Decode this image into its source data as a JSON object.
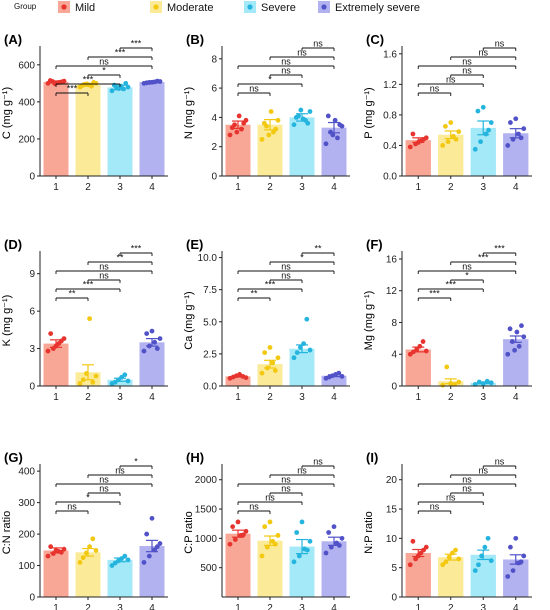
{
  "legend": {
    "title": "Group",
    "items": [
      {
        "label": "Mild",
        "color": "#F8A796",
        "dot": "#E8342E"
      },
      {
        "label": "Moderate",
        "color": "#FBEB98",
        "dot": "#F2C811"
      },
      {
        "label": "Severe",
        "color": "#A4E9F8",
        "dot": "#24B4DE"
      },
      {
        "label": "Extremely severe",
        "color": "#B2B2F0",
        "dot": "#5152C8"
      }
    ]
  },
  "chart_data": [
    {
      "panel": "(A)",
      "type": "bar",
      "categories": [
        "1",
        "2",
        "3",
        "4"
      ],
      "values": [
        508,
        492,
        478,
        507
      ],
      "errors": [
        5,
        8,
        12,
        4
      ],
      "ylabel": "C (mg g⁻¹)",
      "ylim": [
        0,
        680
      ],
      "yticks": [
        "0",
        "200",
        "400",
        "600"
      ],
      "ytick_values": [
        0,
        200,
        400,
        600
      ],
      "points": [
        [
          500,
          505,
          510,
          512,
          503,
          515,
          508,
          498
        ],
        [
          480,
          485,
          495,
          500,
          492,
          488,
          505,
          497
        ],
        [
          460,
          470,
          475,
          480,
          485,
          490,
          500,
          472
        ],
        [
          500,
          505,
          508,
          510,
          503,
          506,
          512
        ]
      ],
      "comparisons": [
        {
          "pair": [
            1,
            2
          ],
          "label": "***"
        },
        {
          "pair": [
            1,
            3
          ],
          "label": "***"
        },
        {
          "pair": [
            2,
            3
          ],
          "label": "*"
        },
        {
          "pair": [
            1,
            4
          ],
          "label": "ns"
        },
        {
          "pair": [
            2,
            4
          ],
          "label": "***"
        },
        {
          "pair": [
            3,
            4
          ],
          "label": "***"
        }
      ]
    },
    {
      "panel": "(B)",
      "type": "bar",
      "categories": [
        "1",
        "2",
        "3",
        "4"
      ],
      "values": [
        3.5,
        3.5,
        4.0,
        3.3
      ],
      "errors": [
        0.25,
        0.35,
        0.25,
        0.35
      ],
      "ylabel": "N (mg g⁻¹)",
      "ylim": [
        0,
        8.6
      ],
      "yticks": [
        "0",
        "2",
        "4",
        "6",
        "8"
      ],
      "ytick_values": [
        0,
        2,
        4,
        6,
        8
      ],
      "points": [
        [
          2.8,
          3.2,
          3.5,
          3.8,
          4.1,
          3.3,
          3.6,
          3.0
        ],
        [
          2.5,
          3.0,
          3.4,
          3.8,
          4.4,
          3.6,
          3.2,
          2.8
        ],
        [
          3.5,
          3.8,
          4.1,
          4.4,
          3.9,
          4.0,
          3.6,
          4.5
        ],
        [
          2.2,
          2.6,
          3.0,
          3.4,
          3.8,
          4.1,
          3.5,
          2.8
        ]
      ],
      "comparisons": [
        {
          "pair": [
            1,
            2
          ],
          "label": "ns"
        },
        {
          "pair": [
            1,
            3
          ],
          "label": "*"
        },
        {
          "pair": [
            2,
            3
          ],
          "label": "ns"
        },
        {
          "pair": [
            1,
            4
          ],
          "label": "ns"
        },
        {
          "pair": [
            2,
            4
          ],
          "label": "ns"
        },
        {
          "pair": [
            3,
            4
          ],
          "label": "ns"
        }
      ]
    },
    {
      "panel": "(C)",
      "type": "bar",
      "categories": [
        "1",
        "2",
        "3",
        "4"
      ],
      "values": [
        0.47,
        0.54,
        0.63,
        0.56
      ],
      "errors": [
        0.03,
        0.05,
        0.09,
        0.06
      ],
      "ylabel": "P (mg g⁻¹)",
      "ylim": [
        0,
        1.65
      ],
      "yticks": [
        "0.0",
        "0.4",
        "0.8",
        "1.2",
        "1.6"
      ],
      "ytick_values": [
        0,
        0.4,
        0.8,
        1.2,
        1.6
      ],
      "points": [
        [
          0.38,
          0.42,
          0.46,
          0.5,
          0.55,
          0.44,
          0.48
        ],
        [
          0.4,
          0.45,
          0.52,
          0.58,
          0.65,
          0.7,
          0.48
        ],
        [
          0.35,
          0.45,
          0.55,
          0.7,
          0.85,
          0.9,
          0.6
        ],
        [
          0.4,
          0.48,
          0.55,
          0.62,
          0.7,
          0.75,
          0.5
        ]
      ],
      "comparisons": [
        {
          "pair": [
            1,
            2
          ],
          "label": "ns"
        },
        {
          "pair": [
            1,
            3
          ],
          "label": "ns"
        },
        {
          "pair": [
            2,
            3
          ],
          "label": "ns"
        },
        {
          "pair": [
            1,
            4
          ],
          "label": "ns"
        },
        {
          "pair": [
            2,
            4
          ],
          "label": "ns"
        },
        {
          "pair": [
            3,
            4
          ],
          "label": "ns"
        }
      ]
    },
    {
      "panel": "(D)",
      "type": "bar",
      "categories": [
        "1",
        "2",
        "3",
        "4"
      ],
      "values": [
        3.4,
        1.1,
        0.5,
        3.5
      ],
      "errors": [
        0.3,
        0.6,
        0.12,
        0.3
      ],
      "ylabel": "K (mg g⁻¹)",
      "ylim": [
        0,
        10.5
      ],
      "yticks": [
        "0",
        "3",
        "6",
        "9"
      ],
      "ytick_values": [
        0,
        3,
        6,
        9
      ],
      "points": [
        [
          2.8,
          3.0,
          3.4,
          3.8,
          4.2,
          3.2,
          3.6
        ],
        [
          0.2,
          0.5,
          1.0,
          5.4,
          0.3,
          0.8
        ],
        [
          0.2,
          0.3,
          0.5,
          0.7,
          0.9,
          0.4
        ],
        [
          2.8,
          3.2,
          3.5,
          3.8,
          4.2,
          4.4,
          3.0
        ]
      ],
      "comparisons": [
        {
          "pair": [
            1,
            2
          ],
          "label": "**"
        },
        {
          "pair": [
            1,
            3
          ],
          "label": "***"
        },
        {
          "pair": [
            2,
            3
          ],
          "label": "ns"
        },
        {
          "pair": [
            1,
            4
          ],
          "label": "ns"
        },
        {
          "pair": [
            2,
            4
          ],
          "label": "**"
        },
        {
          "pair": [
            3,
            4
          ],
          "label": "***"
        }
      ]
    },
    {
      "panel": "(E)",
      "type": "bar",
      "categories": [
        "1",
        "2",
        "3",
        "4"
      ],
      "values": [
        0.75,
        1.7,
        2.9,
        0.8
      ],
      "errors": [
        0.05,
        0.3,
        0.3,
        0.07
      ],
      "ylabel": "Ca (mg g⁻¹)",
      "ylim": [
        0,
        10.2
      ],
      "yticks": [
        "0.0",
        "2.5",
        "5.0",
        "7.5",
        "10.0"
      ],
      "ytick_values": [
        0,
        2.5,
        5,
        7.5,
        10
      ],
      "points": [
        [
          0.6,
          0.7,
          0.8,
          0.9,
          0.75,
          0.65
        ],
        [
          1.0,
          1.4,
          1.8,
          2.2,
          2.6,
          3.0,
          1.2
        ],
        [
          2.2,
          2.6,
          3.0,
          3.3,
          5.2,
          2.8
        ],
        [
          0.6,
          0.7,
          0.8,
          0.9,
          1.0,
          0.75
        ]
      ],
      "comparisons": [
        {
          "pair": [
            1,
            2
          ],
          "label": "**"
        },
        {
          "pair": [
            1,
            3
          ],
          "label": "***"
        },
        {
          "pair": [
            2,
            3
          ],
          "label": "ns"
        },
        {
          "pair": [
            1,
            4
          ],
          "label": "ns"
        },
        {
          "pair": [
            2,
            4
          ],
          "label": "*"
        },
        {
          "pair": [
            3,
            4
          ],
          "label": "**"
        },
        {
          "pair": [
            3,
            4
          ],
          "label": "***",
          "level": 7
        }
      ]
    },
    {
      "panel": "(F)",
      "type": "bar",
      "categories": [
        "1",
        "2",
        "3",
        "4"
      ],
      "values": [
        4.6,
        0.6,
        0.4,
        5.9
      ],
      "errors": [
        0.3,
        0.3,
        0.1,
        0.4
      ],
      "ylabel": "Mg (mg g⁻¹)",
      "ylim": [
        0,
        16.5
      ],
      "yticks": [
        "0",
        "4",
        "8",
        "12",
        "16"
      ],
      "ytick_values": [
        0,
        4,
        8,
        12,
        16
      ],
      "points": [
        [
          4.0,
          4.3,
          4.6,
          5.0,
          5.6,
          4.4
        ],
        [
          0.1,
          0.3,
          0.5,
          2.4,
          0.2
        ],
        [
          0.2,
          0.3,
          0.4,
          0.5,
          0.6
        ],
        [
          4.0,
          5.0,
          5.6,
          6.2,
          6.8,
          7.2,
          7.6,
          4.5
        ]
      ],
      "comparisons": [
        {
          "pair": [
            1,
            2
          ],
          "label": "***"
        },
        {
          "pair": [
            1,
            3
          ],
          "label": "***"
        },
        {
          "pair": [
            2,
            3
          ],
          "label": "*"
        },
        {
          "pair": [
            1,
            4
          ],
          "label": "ns"
        },
        {
          "pair": [
            2,
            4
          ],
          "label": "***"
        },
        {
          "pair": [
            3,
            4
          ],
          "label": "***"
        }
      ]
    },
    {
      "panel": "(G)",
      "type": "bar",
      "categories": [
        "1",
        "2",
        "3",
        "4"
      ],
      "values": [
        148,
        142,
        118,
        162
      ],
      "errors": [
        8,
        12,
        6,
        18
      ],
      "ylabel": "C:N ratio",
      "ylim": [
        0,
        410
      ],
      "yticks": [
        "0",
        "100",
        "200",
        "300",
        "400"
      ],
      "ytick_values": [
        0,
        100,
        200,
        300,
        400
      ],
      "points": [
        [
          130,
          138,
          145,
          152,
          160,
          148,
          142
        ],
        [
          110,
          125,
          140,
          160,
          185,
          148
        ],
        [
          100,
          108,
          115,
          122,
          130,
          118
        ],
        [
          110,
          130,
          150,
          170,
          200,
          250,
          160
        ]
      ],
      "comparisons": [
        {
          "pair": [
            1,
            2
          ],
          "label": "ns"
        },
        {
          "pair": [
            1,
            3
          ],
          "label": "*"
        },
        {
          "pair": [
            2,
            3
          ],
          "label": "ns"
        },
        {
          "pair": [
            1,
            4
          ],
          "label": "ns"
        },
        {
          "pair": [
            2,
            4
          ],
          "label": "ns"
        },
        {
          "pair": [
            3,
            4
          ],
          "label": "*"
        }
      ]
    },
    {
      "panel": "(H)",
      "type": "bar",
      "categories": [
        "1",
        "2",
        "3",
        "4"
      ],
      "values": [
        1080,
        960,
        860,
        950
      ],
      "errors": [
        60,
        80,
        120,
        70
      ],
      "ylabel": "C:P ratio",
      "ylim": [
        0,
        2200
      ],
      "yticks": [
        "500",
        "1000",
        "1500",
        "2000"
      ],
      "ytick_values": [
        500,
        1000,
        1500,
        2000
      ],
      "points": [
        [
          900,
          980,
          1050,
          1120,
          1200,
          1280,
          1060
        ],
        [
          700,
          850,
          950,
          1050,
          1200,
          1280,
          900
        ],
        [
          600,
          700,
          820,
          950,
          1100,
          1280,
          800
        ],
        [
          750,
          850,
          920,
          1000,
          1100,
          1200,
          880
        ]
      ],
      "comparisons": [
        {
          "pair": [
            1,
            2
          ],
          "label": "ns"
        },
        {
          "pair": [
            1,
            3
          ],
          "label": "ns"
        },
        {
          "pair": [
            2,
            3
          ],
          "label": "ns"
        },
        {
          "pair": [
            1,
            4
          ],
          "label": "ns"
        },
        {
          "pair": [
            2,
            4
          ],
          "label": "ns"
        },
        {
          "pair": [
            3,
            4
          ],
          "label": "ns"
        }
      ]
    },
    {
      "panel": "(I)",
      "type": "bar",
      "categories": [
        "1",
        "2",
        "3",
        "4"
      ],
      "values": [
        7.5,
        6.8,
        7.2,
        6.4
      ],
      "errors": [
        0.6,
        0.5,
        0.8,
        0.8
      ],
      "ylabel": "N:P ratio",
      "ylim": [
        0,
        22
      ],
      "yticks": [
        "0",
        "5",
        "10",
        "15",
        "20"
      ],
      "ytick_values": [
        0,
        5,
        10,
        15,
        20
      ],
      "points": [
        [
          5.5,
          6.5,
          7.5,
          8.5,
          9.5,
          7.0,
          8.0
        ],
        [
          5.5,
          6.0,
          6.8,
          7.5,
          8.0,
          6.5
        ],
        [
          4.5,
          5.5,
          7.0,
          8.5,
          10.0,
          6.2
        ],
        [
          3.5,
          4.5,
          5.8,
          7.0,
          8.5,
          10.0,
          6.0
        ]
      ],
      "comparisons": [
        {
          "pair": [
            1,
            2
          ],
          "label": "ns"
        },
        {
          "pair": [
            1,
            3
          ],
          "label": "ns"
        },
        {
          "pair": [
            2,
            3
          ],
          "label": "ns"
        },
        {
          "pair": [
            1,
            4
          ],
          "label": "ns"
        },
        {
          "pair": [
            2,
            4
          ],
          "label": "ns"
        },
        {
          "pair": [
            3,
            4
          ],
          "label": "ns"
        }
      ]
    }
  ]
}
